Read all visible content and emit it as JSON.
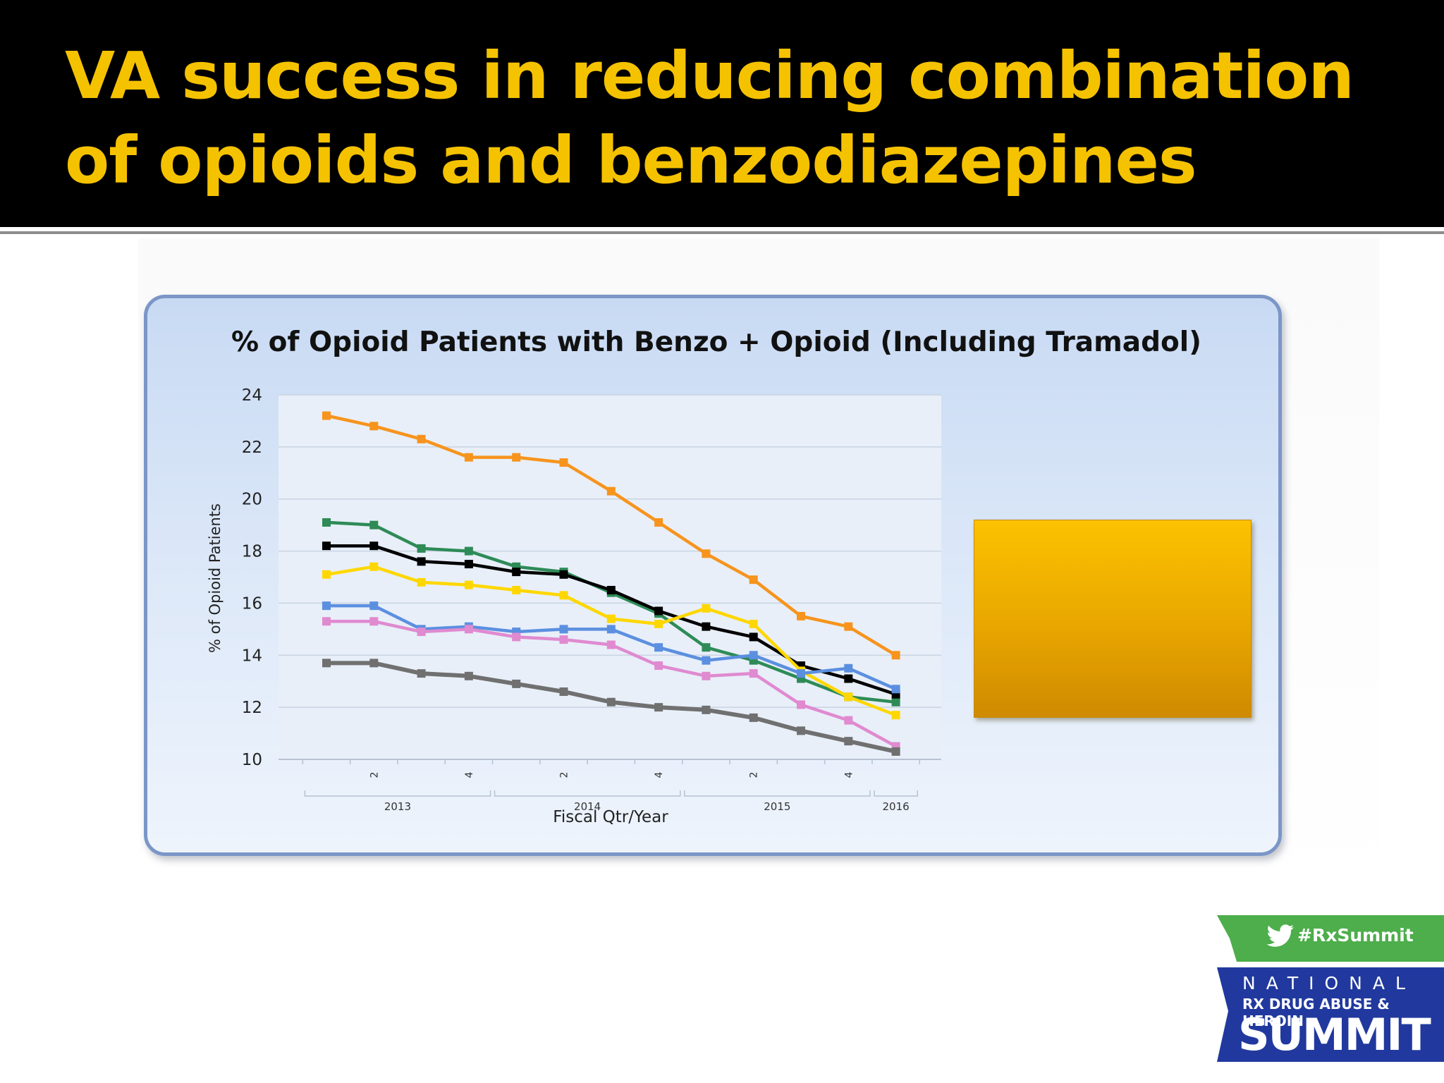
{
  "slide": {
    "title": "VA success in reducing combination of opioids and benzodiazepines"
  },
  "chart_data": {
    "type": "line",
    "title": "% of Opioid Patients with Benzo + Opioid (Including Tramadol)",
    "xlabel": "Fiscal Qtr/Year",
    "ylabel": "% of Opioid Patients",
    "ylim": [
      10,
      24
    ],
    "yticks": [
      "10",
      "12",
      "14",
      "16",
      "18",
      "20",
      "22",
      "24"
    ],
    "x": [
      "2013 Q1",
      "2013 Q2",
      "2013 Q3",
      "2013 Q4",
      "2014 Q1",
      "2014 Q2",
      "2014 Q3",
      "2014 Q4",
      "2015 Q1",
      "2015 Q2",
      "2015 Q3",
      "2015 Q4",
      "2016 Q1"
    ],
    "quarter_tick_labels": [
      {
        "index": 1,
        "label": "2"
      },
      {
        "index": 3,
        "label": "4"
      },
      {
        "index": 5,
        "label": "2"
      },
      {
        "index": 7,
        "label": "4"
      },
      {
        "index": 9,
        "label": "2"
      },
      {
        "index": 11,
        "label": "4"
      }
    ],
    "year_groups": [
      {
        "label": "2013",
        "start": 0,
        "end": 3
      },
      {
        "label": "2014",
        "start": 4,
        "end": 7
      },
      {
        "label": "2015",
        "start": 8,
        "end": 11
      },
      {
        "label": "2016",
        "start": 12,
        "end": 12
      }
    ],
    "grid": true,
    "legend": "right",
    "series": [
      {
        "color": "#f7941d",
        "values": [
          23.2,
          22.8,
          22.3,
          21.6,
          21.6,
          21.4,
          20.3,
          19.1,
          17.9,
          16.9,
          15.5,
          15.1,
          14.0
        ]
      },
      {
        "color": "#2e8b57",
        "values": [
          19.1,
          19.0,
          18.1,
          18.0,
          17.4,
          17.2,
          16.4,
          15.6,
          14.3,
          13.8,
          13.1,
          12.4,
          12.2
        ]
      },
      {
        "color": "#000000",
        "values": [
          18.2,
          18.2,
          17.6,
          17.5,
          17.2,
          17.1,
          16.5,
          15.7,
          15.1,
          14.7,
          13.6,
          13.1,
          12.5
        ]
      },
      {
        "color": "#ffd700",
        "values": [
          17.1,
          17.4,
          16.8,
          16.7,
          16.5,
          16.3,
          15.4,
          15.2,
          15.8,
          15.2,
          13.4,
          12.4,
          11.7
        ]
      },
      {
        "color": "#5b8fe0",
        "values": [
          15.9,
          15.9,
          15.0,
          15.1,
          14.9,
          15.0,
          15.0,
          14.3,
          13.8,
          14.0,
          13.3,
          13.5,
          12.7
        ]
      },
      {
        "color": "#e08ad0",
        "values": [
          15.3,
          15.3,
          14.9,
          15.0,
          14.7,
          14.6,
          14.4,
          13.6,
          13.2,
          13.3,
          12.1,
          11.5,
          10.5
        ]
      },
      {
        "color": "#707070",
        "values": [
          13.7,
          13.7,
          13.3,
          13.2,
          12.9,
          12.6,
          12.2,
          12.0,
          11.9,
          11.6,
          11.1,
          10.7,
          10.3
        ]
      }
    ]
  },
  "logo": {
    "hashtag": "#RxSummit",
    "line1": "NATIONAL",
    "line2": "RX DRUG ABUSE & HEROIN",
    "line3": "SUMMIT"
  }
}
